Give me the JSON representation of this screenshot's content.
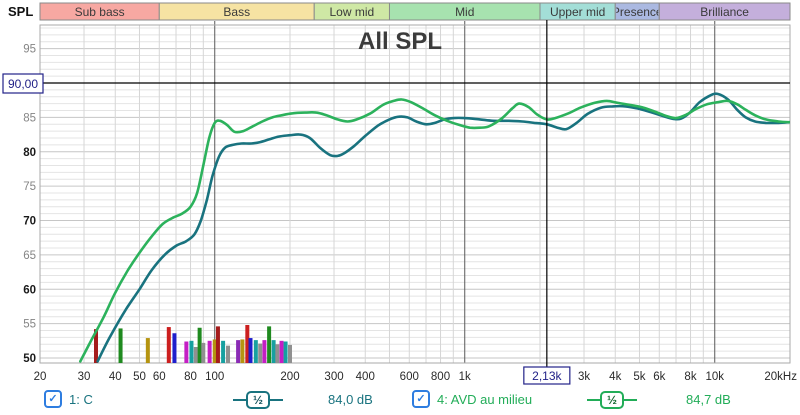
{
  "window": {
    "corner_label": "SPL",
    "title": "All SPL"
  },
  "bands": [
    {
      "label": "Sub bass",
      "f_start": 20,
      "f_end": 60,
      "color": "#f7a8a2"
    },
    {
      "label": "Bass",
      "f_start": 60,
      "f_end": 250,
      "color": "#f6e3a3"
    },
    {
      "label": "Low mid",
      "f_start": 250,
      "f_end": 500,
      "color": "#cfe8a5"
    },
    {
      "label": "Mid",
      "f_start": 500,
      "f_end": 2000,
      "color": "#a7e2af"
    },
    {
      "label": "Upper mid",
      "f_start": 2000,
      "f_end": 4000,
      "color": "#a3ded7"
    },
    {
      "label": "Presence",
      "f_start": 4000,
      "f_end": 6000,
      "color": "#abb9e1"
    },
    {
      "label": "Brilliance",
      "f_start": 6000,
      "f_end": 20000,
      "color": "#c4afdc"
    }
  ],
  "y_axis": {
    "ticks": [
      {
        "value": "95",
        "strong": false
      },
      {
        "value": "85",
        "strong": false
      },
      {
        "value": "80",
        "strong": true
      },
      {
        "value": "75",
        "strong": false
      },
      {
        "value": "70",
        "strong": true
      },
      {
        "value": "65",
        "strong": false
      },
      {
        "value": "60",
        "strong": true
      },
      {
        "value": "55",
        "strong": false
      },
      {
        "value": "50",
        "strong": true
      }
    ],
    "db_values": [
      95,
      85,
      80,
      75,
      70,
      65,
      60,
      55,
      50
    ]
  },
  "x_axis": {
    "ticks": [
      {
        "f": 20,
        "label": "20"
      },
      {
        "f": 30,
        "label": "30"
      },
      {
        "f": 40,
        "label": "40"
      },
      {
        "f": 50,
        "label": "50"
      },
      {
        "f": 60,
        "label": "60"
      },
      {
        "f": 80,
        "label": "80"
      },
      {
        "f": 100,
        "label": "100"
      },
      {
        "f": 200,
        "label": "200"
      },
      {
        "f": 300,
        "label": "300"
      },
      {
        "f": 400,
        "label": "400"
      },
      {
        "f": 600,
        "label": "600"
      },
      {
        "f": 800,
        "label": "800"
      },
      {
        "f": 1000,
        "label": "1k"
      },
      {
        "f": 3000,
        "label": "3k"
      },
      {
        "f": 4000,
        "label": "4k"
      },
      {
        "f": 5000,
        "label": "5k"
      },
      {
        "f": 6000,
        "label": "6k"
      },
      {
        "f": 8000,
        "label": "8k"
      },
      {
        "f": 10000,
        "label": "10k"
      },
      {
        "f": 20000,
        "label": "20kHz"
      }
    ],
    "dark_grid_freqs": [
      100,
      1000,
      10000
    ]
  },
  "cursor": {
    "level_label": "90,00",
    "level_db": 90,
    "freq_label": "2,13k",
    "freq_hz": 2130,
    "box_color": "#222288"
  },
  "chart_data": {
    "type": "line",
    "title": "All SPL",
    "x_scale": "log",
    "x_range_hz": [
      20,
      20000
    ],
    "y_visible_range_db": [
      49.3,
      98.4
    ],
    "grid": true,
    "legend_position": "bottom",
    "series": [
      {
        "name": "1: C",
        "color": "#19737f",
        "cursor_value_db": 84.0,
        "points": [
          [
            34,
            49.5
          ],
          [
            38,
            53
          ],
          [
            44,
            57
          ],
          [
            50,
            60
          ],
          [
            56,
            62.8
          ],
          [
            63,
            65
          ],
          [
            70,
            66.3
          ],
          [
            77,
            67
          ],
          [
            83,
            68
          ],
          [
            88,
            70
          ],
          [
            93,
            73
          ],
          [
            98,
            76.5
          ],
          [
            104,
            79.3
          ],
          [
            110,
            80.6
          ],
          [
            118,
            81
          ],
          [
            128,
            81.2
          ],
          [
            140,
            81.2
          ],
          [
            152,
            81.4
          ],
          [
            165,
            81.8
          ],
          [
            180,
            82.2
          ],
          [
            200,
            82.4
          ],
          [
            220,
            82.5
          ],
          [
            240,
            82
          ],
          [
            265,
            80.5
          ],
          [
            290,
            79.5
          ],
          [
            310,
            79.4
          ],
          [
            330,
            79.8
          ],
          [
            360,
            80.8
          ],
          [
            400,
            82.3
          ],
          [
            450,
            83.8
          ],
          [
            500,
            84.7
          ],
          [
            545,
            85.1
          ],
          [
            590,
            85.0
          ],
          [
            640,
            84.4
          ],
          [
            700,
            84.0
          ],
          [
            760,
            84.2
          ],
          [
            830,
            84.7
          ],
          [
            900,
            84.9
          ],
          [
            1000,
            84.9
          ],
          [
            1150,
            84.7
          ],
          [
            1300,
            84.5
          ],
          [
            1500,
            84.5
          ],
          [
            1700,
            84.4
          ],
          [
            1900,
            84.2
          ],
          [
            2130,
            84.0
          ],
          [
            2350,
            83.5
          ],
          [
            2550,
            83.3
          ],
          [
            2800,
            84.2
          ],
          [
            3100,
            85.5
          ],
          [
            3500,
            86.4
          ],
          [
            3900,
            86.6
          ],
          [
            4400,
            86.6
          ],
          [
            4900,
            86.3
          ],
          [
            5500,
            85.8
          ],
          [
            6200,
            85.2
          ],
          [
            6800,
            84.8
          ],
          [
            7300,
            84.8
          ],
          [
            7900,
            85.6
          ],
          [
            8700,
            87.2
          ],
          [
            9600,
            88.2
          ],
          [
            10300,
            88.4
          ],
          [
            11300,
            87.6
          ],
          [
            12300,
            86.1
          ],
          [
            13300,
            85.0
          ],
          [
            14500,
            84.4
          ],
          [
            16000,
            84.2
          ],
          [
            18000,
            84.2
          ],
          [
            20000,
            84.3
          ]
        ]
      },
      {
        "name": "4: AVD au milieu",
        "color": "#2cb25c",
        "cursor_value_db": 84.7,
        "points": [
          [
            29,
            49.5
          ],
          [
            32,
            52.5
          ],
          [
            36,
            56
          ],
          [
            40,
            59.5
          ],
          [
            45,
            62.8
          ],
          [
            50,
            65.3
          ],
          [
            56,
            67.7
          ],
          [
            62,
            69.5
          ],
          [
            68,
            70.4
          ],
          [
            74,
            71
          ],
          [
            80,
            72
          ],
          [
            85,
            74
          ],
          [
            90,
            78
          ],
          [
            95,
            82
          ],
          [
            100,
            84.2
          ],
          [
            105,
            84.5
          ],
          [
            112,
            83.9
          ],
          [
            120,
            82.9
          ],
          [
            130,
            83
          ],
          [
            142,
            83.7
          ],
          [
            155,
            84.4
          ],
          [
            170,
            85
          ],
          [
            185,
            85.3
          ],
          [
            205,
            85.6
          ],
          [
            230,
            85.7
          ],
          [
            255,
            85.7
          ],
          [
            280,
            85.3
          ],
          [
            310,
            84.7
          ],
          [
            340,
            84.4
          ],
          [
            370,
            84.7
          ],
          [
            420,
            85.6
          ],
          [
            470,
            86.8
          ],
          [
            520,
            87.4
          ],
          [
            560,
            87.6
          ],
          [
            610,
            87.2
          ],
          [
            680,
            86.3
          ],
          [
            760,
            85.3
          ],
          [
            850,
            84.5
          ],
          [
            950,
            83.9
          ],
          [
            1050,
            83.5
          ],
          [
            1150,
            83.5
          ],
          [
            1250,
            83.7
          ],
          [
            1400,
            84.8
          ],
          [
            1550,
            86.3
          ],
          [
            1650,
            87.0
          ],
          [
            1800,
            86.5
          ],
          [
            1950,
            85.4
          ],
          [
            2130,
            84.7
          ],
          [
            2300,
            84.9
          ],
          [
            2600,
            85.6
          ],
          [
            2900,
            86.4
          ],
          [
            3300,
            87.1
          ],
          [
            3700,
            87.4
          ],
          [
            4100,
            87.1
          ],
          [
            4600,
            86.8
          ],
          [
            5200,
            86.4
          ],
          [
            5800,
            85.8
          ],
          [
            6400,
            85.2
          ],
          [
            7000,
            84.9
          ],
          [
            7700,
            85.4
          ],
          [
            8400,
            86.2
          ],
          [
            9300,
            86.9
          ],
          [
            10300,
            87.2
          ],
          [
            11300,
            87.4
          ],
          [
            12300,
            86.9
          ],
          [
            13300,
            86.1
          ],
          [
            14500,
            85.3
          ],
          [
            16000,
            84.7
          ],
          [
            18000,
            84.4
          ],
          [
            20000,
            84.3
          ]
        ]
      }
    ],
    "distortion_markers": [
      [
        33.5,
        54.2,
        "#a51c1c"
      ],
      [
        42,
        54.3,
        "#1f8a1f"
      ],
      [
        54,
        52.9,
        "#b59410"
      ],
      [
        65.5,
        54.5,
        "#cc1f1f"
      ],
      [
        69,
        53.6,
        "#1f1fcc"
      ],
      [
        77,
        52.4,
        "#c41fc4"
      ],
      [
        80.7,
        52.5,
        "#16a0a0"
      ],
      [
        84,
        51.6,
        "#909090"
      ],
      [
        87,
        54.4,
        "#1f8a1f"
      ],
      [
        90,
        52.2,
        "#909090"
      ],
      [
        95.4,
        52.5,
        "#c41fc4"
      ],
      [
        100,
        52.7,
        "#b59410"
      ],
      [
        103,
        54.6,
        "#a51c1c"
      ],
      [
        108,
        52.5,
        "#16a0a0"
      ],
      [
        113,
        51.8,
        "#909090"
      ],
      [
        124,
        52.6,
        "#8a2bb5"
      ],
      [
        129,
        52.7,
        "#b59410"
      ],
      [
        135,
        54.8,
        "#cc1f1f"
      ],
      [
        139,
        52.9,
        "#1f1fcc"
      ],
      [
        146,
        52.6,
        "#16a0a0"
      ],
      [
        152,
        52.1,
        "#909090"
      ],
      [
        158,
        52.6,
        "#c41fc4"
      ],
      [
        165,
        54.6,
        "#1f8a1f"
      ],
      [
        172,
        52.6,
        "#16a0a0"
      ],
      [
        178,
        52.0,
        "#909090"
      ],
      [
        185,
        52.5,
        "#c41fc4"
      ],
      [
        192,
        52.4,
        "#16a0a0"
      ],
      [
        200,
        51.9,
        "#909090"
      ]
    ]
  },
  "legend": {
    "half_symbol": "½",
    "items": [
      {
        "label": "1: C",
        "value": "84,0 dB",
        "color": "#19737f",
        "checked": true
      },
      {
        "label": "4: AVD au milieu",
        "value": "84,7 dB",
        "color": "#22ad58",
        "checked": true
      }
    ]
  }
}
